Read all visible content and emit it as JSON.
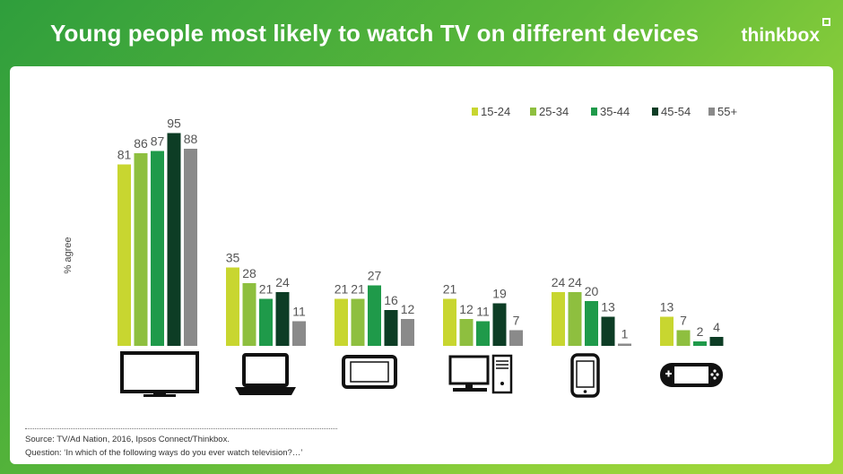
{
  "header": {
    "title": "Young people most likely to watch TV on different devices",
    "brand": "thinkbox"
  },
  "footer": {
    "source": "Source: TV/Ad Nation, 2016, Ipsos Connect/Thinkbox.",
    "question": "Question: ‘In which of the following ways do you ever watch television?…’"
  },
  "chart_data": {
    "type": "bar",
    "title": "Young people most likely to watch TV on different devices",
    "ylabel": "% agree",
    "xlabel": "",
    "ylim": [
      0,
      100
    ],
    "grid": false,
    "legend": "top-right",
    "categories": [
      "tv-icon",
      "laptop-icon",
      "tablet-icon",
      "desktop-pc-icon",
      "smartphone-icon",
      "games-console-icon"
    ],
    "series": [
      {
        "name": "15-24",
        "color": "#c8d630",
        "values": [
          81,
          35,
          21,
          21,
          24,
          13
        ]
      },
      {
        "name": "25-34",
        "color": "#8ebf3f",
        "values": [
          86,
          28,
          21,
          12,
          24,
          7
        ]
      },
      {
        "name": "35-44",
        "color": "#1f9a4a",
        "values": [
          87,
          21,
          27,
          11,
          20,
          2
        ]
      },
      {
        "name": "45-54",
        "color": "#0d3d25",
        "values": [
          95,
          24,
          16,
          19,
          13,
          4
        ]
      },
      {
        "name": "55+",
        "color": "#8a8a8a",
        "values": [
          88,
          11,
          12,
          7,
          1,
          null
        ]
      }
    ]
  }
}
